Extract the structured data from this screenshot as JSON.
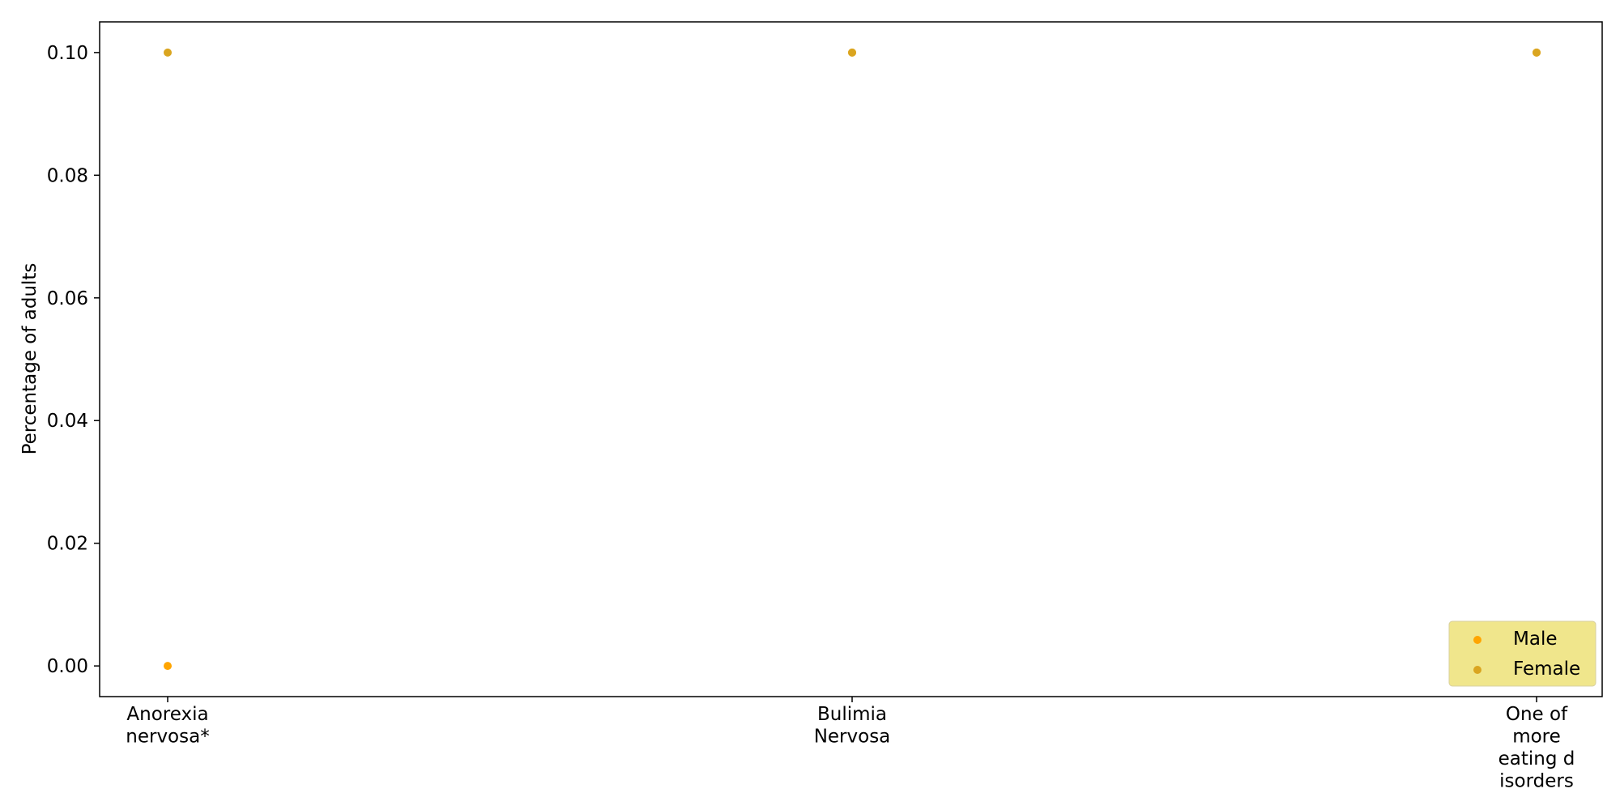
{
  "chart_data": {
    "type": "scatter",
    "categories": [
      [
        "Anorexia",
        "nervosa*"
      ],
      [
        "Bulimia",
        "Nervosa"
      ],
      [
        "One of",
        "more",
        "eating d",
        "isorders"
      ]
    ],
    "series": [
      {
        "name": "Male",
        "color": "#ffa500",
        "values": [
          0.0,
          0.1,
          0.1
        ]
      },
      {
        "name": "Female",
        "color": "#daa520",
        "values": [
          0.1,
          0.1,
          0.1
        ]
      }
    ],
    "title": "",
    "xlabel": "",
    "ylabel": "Percentage of adults",
    "ylim": [
      -0.005,
      0.105
    ],
    "yticks": [
      0.0,
      0.02,
      0.04,
      0.06,
      0.08,
      0.1
    ],
    "ytick_labels": [
      "0.00",
      "0.02",
      "0.04",
      "0.06",
      "0.08",
      "0.10"
    ],
    "grid": false,
    "legend": {
      "placement": "lower-right",
      "background": "#f0e68c"
    }
  }
}
